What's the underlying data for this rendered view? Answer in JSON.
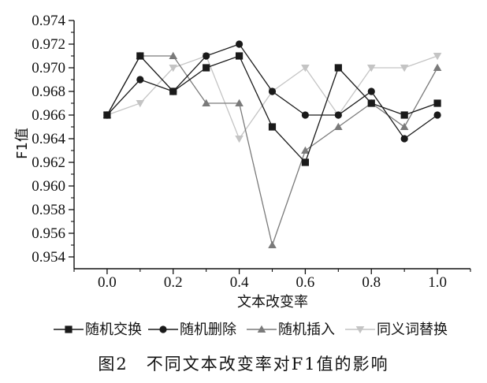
{
  "chart_data": {
    "type": "line",
    "title": "",
    "xlabel": "文本改变率",
    "ylabel": "F1值",
    "x": [
      0.0,
      0.1,
      0.2,
      0.3,
      0.4,
      0.5,
      0.6,
      0.7,
      0.8,
      0.9,
      1.0
    ],
    "xticks": [
      "0.0",
      "0.2",
      "0.4",
      "0.6",
      "0.8",
      "1.0"
    ],
    "xlim": [
      -0.1,
      1.1
    ],
    "ylim": [
      0.953,
      0.974
    ],
    "yticks": [
      "0.954",
      "0.956",
      "0.958",
      "0.960",
      "0.962",
      "0.964",
      "0.966",
      "0.968",
      "0.970",
      "0.972",
      "0.974"
    ],
    "grid": false,
    "legend_position": "bottom",
    "series": [
      {
        "name": "随机交换",
        "color": "#1a1a1a",
        "marker": "square",
        "values": [
          0.966,
          0.971,
          0.968,
          0.97,
          0.971,
          0.965,
          0.962,
          0.97,
          0.967,
          0.966,
          0.967
        ]
      },
      {
        "name": "随机删除",
        "color": "#1a1a1a",
        "marker": "circle",
        "values": [
          0.966,
          0.969,
          0.968,
          0.971,
          0.972,
          0.968,
          0.966,
          0.966,
          0.968,
          0.964,
          0.966
        ]
      },
      {
        "name": "随机插入",
        "color": "#7a7a7a",
        "marker": "triangle-up",
        "values": [
          0.966,
          0.971,
          0.971,
          0.967,
          0.967,
          0.955,
          0.963,
          0.965,
          0.967,
          0.965,
          0.97
        ]
      },
      {
        "name": "同义词替换",
        "color": "#c4c4c4",
        "marker": "triangle-down",
        "values": [
          0.966,
          0.967,
          0.97,
          0.971,
          0.964,
          0.968,
          0.97,
          0.966,
          0.97,
          0.97,
          0.971
        ]
      }
    ]
  },
  "caption": "图2　不同文本改变率对F1值的影响"
}
